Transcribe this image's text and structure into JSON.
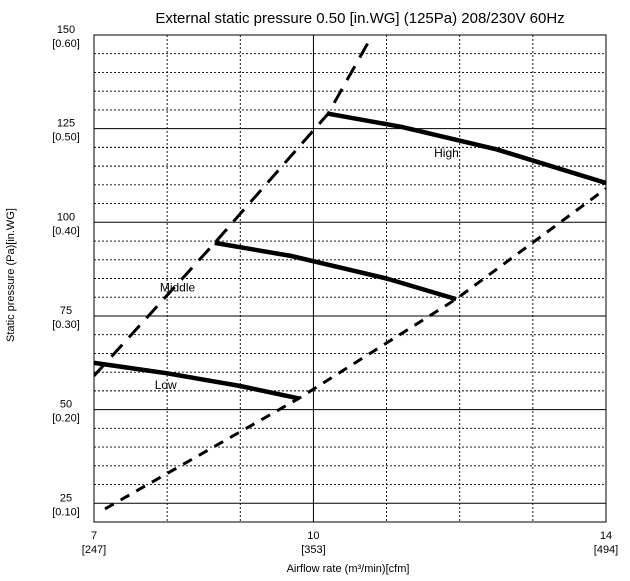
{
  "chart_data": {
    "type": "line",
    "title": "External static pressure 0.50 [in.WG] (125Pa)  208/230V 60Hz",
    "xlabel": "Airflow rate (m³/min)[cfm]",
    "ylabel": "Static pressure (Pa)[in.WG]",
    "xlim": [
      7,
      14
    ],
    "ylim": [
      20,
      150
    ],
    "x_ticks": [
      {
        "value": 7,
        "label": "7",
        "sub": "[247]"
      },
      {
        "value": 10,
        "label": "10",
        "sub": "[353]"
      },
      {
        "value": 14,
        "label": "14",
        "sub": "[494]"
      }
    ],
    "y_ticks": [
      {
        "value": 150,
        "label": "150",
        "sub": "[0.60]"
      },
      {
        "value": 125,
        "label": "125",
        "sub": "[0.50]"
      },
      {
        "value": 100,
        "label": "100",
        "sub": "[0.40]"
      },
      {
        "value": 75,
        "label": "75",
        "sub": "[0.30]"
      },
      {
        "value": 50,
        "label": "50",
        "sub": "[0.20]"
      },
      {
        "value": 25,
        "label": "25",
        "sub": "[0.10]"
      }
    ],
    "x_minor_grid": [
      8,
      9,
      11,
      12,
      13
    ],
    "y_minor_step": 5,
    "grid": true,
    "series": [
      {
        "name": "High",
        "style": "solid",
        "x": [
          10.2,
          11.2,
          12.5,
          14.0
        ],
        "y": [
          129,
          125.5,
          119.5,
          110.5
        ]
      },
      {
        "name": "Middle",
        "style": "solid",
        "x": [
          8.65,
          9.7,
          11.0,
          11.95
        ],
        "y": [
          94.5,
          91,
          85,
          79.5
        ]
      },
      {
        "name": "Low",
        "style": "solid",
        "x": [
          7.0,
          8.0,
          9.0,
          9.8
        ],
        "y": [
          62.5,
          59.7,
          56.3,
          53
        ]
      },
      {
        "name": "",
        "style": "dashed-long",
        "x": [
          7.0,
          8.65,
          10.2,
          10.95
        ],
        "y": [
          59,
          94.5,
          129,
          155
        ]
      },
      {
        "name": "",
        "style": "dashed-short",
        "x": [
          7.15,
          9.8,
          11.95,
          14.0
        ],
        "y": [
          23.5,
          53,
          79.5,
          109
        ]
      }
    ],
    "annotations": [
      {
        "text": "High",
        "x": 11.65,
        "y": 117.5
      },
      {
        "text": "Middle",
        "x": 7.9,
        "y": 81.5
      },
      {
        "text": "Low",
        "x": 7.83,
        "y": 55.5
      }
    ]
  }
}
